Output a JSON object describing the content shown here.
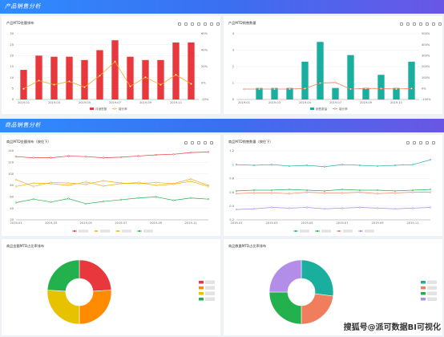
{
  "sections": [
    {
      "title": "产品销售分析"
    },
    {
      "title": "商品销售分析"
    }
  ],
  "panels": {
    "p1": {
      "title": "产品MTD金额排布"
    },
    "p2": {
      "title": "产品MTD销售数量"
    },
    "p3": {
      "title": "商品MTD金额排布（按住下）"
    },
    "p4": {
      "title": "商品MTD销售数量（按住下）"
    },
    "p5": {
      "title": "商品金额MTD占比率排布"
    },
    "p6": {
      "title": "商品数量MTD占比率排布"
    }
  },
  "watermark": "搜狐号@派可数据BI可视化",
  "chart_data": [
    {
      "type": "bar",
      "categories": [
        "2019-01",
        "2019-02",
        "2019-03",
        "2019-04",
        "2019-05",
        "2019-06",
        "2019-07",
        "2019-08",
        "2019-09",
        "2019-10",
        "2019-11",
        "2019-12"
      ],
      "series": [
        {
          "name": "月销售额",
          "type": "bar",
          "values": [
            13.5,
            20,
            19.5,
            19.5,
            18,
            22.5,
            27,
            19.5,
            18,
            18,
            26,
            26
          ]
        },
        {
          "name": "增长率",
          "type": "line",
          "values": [
            -7,
            3,
            -2,
            2,
            -5,
            9,
            26,
            -4,
            7,
            -2,
            10,
            -1
          ]
        }
      ],
      "yticks_left": [
        "0",
        "5",
        "10",
        "15",
        "20",
        "25",
        "30"
      ],
      "yticks_right": [
        "-20%",
        "0%",
        "20%",
        "40%",
        "60%"
      ],
      "xticks": [
        "2019-01",
        "2019-03",
        "2019-05",
        "2019-07",
        "2019-09",
        "2019-11"
      ],
      "colors": [
        "#e8383d",
        "#f5a623"
      ]
    },
    {
      "type": "bar",
      "categories": [
        "2019-01",
        "2019-02",
        "2019-03",
        "2019-04",
        "2019-05",
        "2019-06",
        "2019-07",
        "2019-08",
        "2019-09",
        "2019-10",
        "2019-11",
        "2019-12"
      ],
      "series": [
        {
          "name": "销售数量",
          "type": "bar",
          "values": [
            0,
            0.7,
            0.7,
            0.7,
            2.3,
            3.5,
            0.7,
            2.7,
            0.7,
            1.5,
            0.7,
            2.3
          ]
        },
        {
          "name": "增长率",
          "type": "line",
          "values": [
            -5,
            -5,
            -5,
            -5,
            0,
            50,
            55,
            -5,
            0,
            0,
            -5,
            0
          ]
        }
      ],
      "yticks_left": [
        "0",
        "1",
        "2",
        "3",
        "4"
      ],
      "yticks_right": [
        "-100%",
        "0%",
        "100%",
        "200%",
        "300%",
        "400%",
        "500%"
      ],
      "xticks": [
        "2019-01",
        "2019-03",
        "2019-05",
        "2019-07",
        "2019-09",
        "2019-11"
      ],
      "colors": [
        "#1aae9f",
        "#f07e5c"
      ]
    },
    {
      "type": "line",
      "x": [
        "2019-01",
        "2019-02",
        "2019-03",
        "2019-04",
        "2019-05",
        "2019-06",
        "2019-07",
        "2019-08",
        "2019-09",
        "2019-10",
        "2019-11",
        "2019-12"
      ],
      "series": [
        {
          "values": [
            130,
            128,
            128,
            131,
            130,
            128,
            129,
            131,
            133,
            134,
            137,
            138
          ],
          "color": "#e8383d"
        },
        {
          "values": [
            90,
            78,
            85,
            84,
            82,
            88,
            84,
            83,
            85,
            83,
            91,
            80
          ],
          "color": "#f5a623"
        },
        {
          "values": [
            78,
            84,
            83,
            80,
            86,
            79,
            83,
            85,
            80,
            82,
            87,
            78
          ],
          "color": "#e6b800"
        },
        {
          "values": [
            50,
            56,
            51,
            57,
            48,
            52,
            55,
            58,
            60,
            54,
            58,
            56
          ],
          "color": "#22b14c"
        }
      ],
      "yticks": [
        "20",
        "40",
        "60",
        "80",
        "100",
        "120",
        "140"
      ],
      "xticks": [
        "2019-01",
        "2019-03",
        "2019-05",
        "2019-07",
        "2019-09",
        "2019-11"
      ]
    },
    {
      "type": "line",
      "x": [
        "2019-01",
        "2019-02",
        "2019-03",
        "2019-04",
        "2019-05",
        "2019-06",
        "2019-07",
        "2019-08",
        "2019-09",
        "2019-10",
        "2019-11",
        "2019-12"
      ],
      "series": [
        {
          "values": [
            1.0,
            0.99,
            1.0,
            0.98,
            0.99,
            0.97,
            1.0,
            0.99,
            0.98,
            0.99,
            1.0,
            1.07
          ],
          "color": "#1aae9f"
        },
        {
          "values": [
            0.62,
            0.63,
            0.63,
            0.64,
            0.63,
            0.62,
            0.64,
            0.63,
            0.63,
            0.62,
            0.63,
            0.64
          ],
          "color": "#22b14c"
        },
        {
          "values": [
            0.58,
            0.59,
            0.59,
            0.58,
            0.6,
            0.59,
            0.59,
            0.6,
            0.58,
            0.59,
            0.6,
            0.6
          ],
          "color": "#f07e5c"
        },
        {
          "values": [
            0.35,
            0.36,
            0.38,
            0.37,
            0.38,
            0.36,
            0.37,
            0.38,
            0.37,
            0.36,
            0.37,
            0.38
          ],
          "color": "#a98ce0"
        }
      ],
      "yticks": [
        "0.2",
        "0.4",
        "0.6",
        "0.8",
        "1",
        "1.2"
      ],
      "xticks": [
        "2019-01",
        "2019-03",
        "2019-05",
        "2019-07",
        "2019-09",
        "2019-11"
      ]
    },
    {
      "type": "pie",
      "values": [
        0.24,
        0.26,
        0.26,
        0.24
      ],
      "colors": [
        "#e8383d",
        "#ff8c00",
        "#e6c200",
        "#22b14c"
      ]
    },
    {
      "type": "pie",
      "values": [
        0.27,
        0.23,
        0.25,
        0.25
      ],
      "colors": [
        "#1aae9f",
        "#f07e5c",
        "#22b14c",
        "#b38ee8"
      ]
    }
  ]
}
